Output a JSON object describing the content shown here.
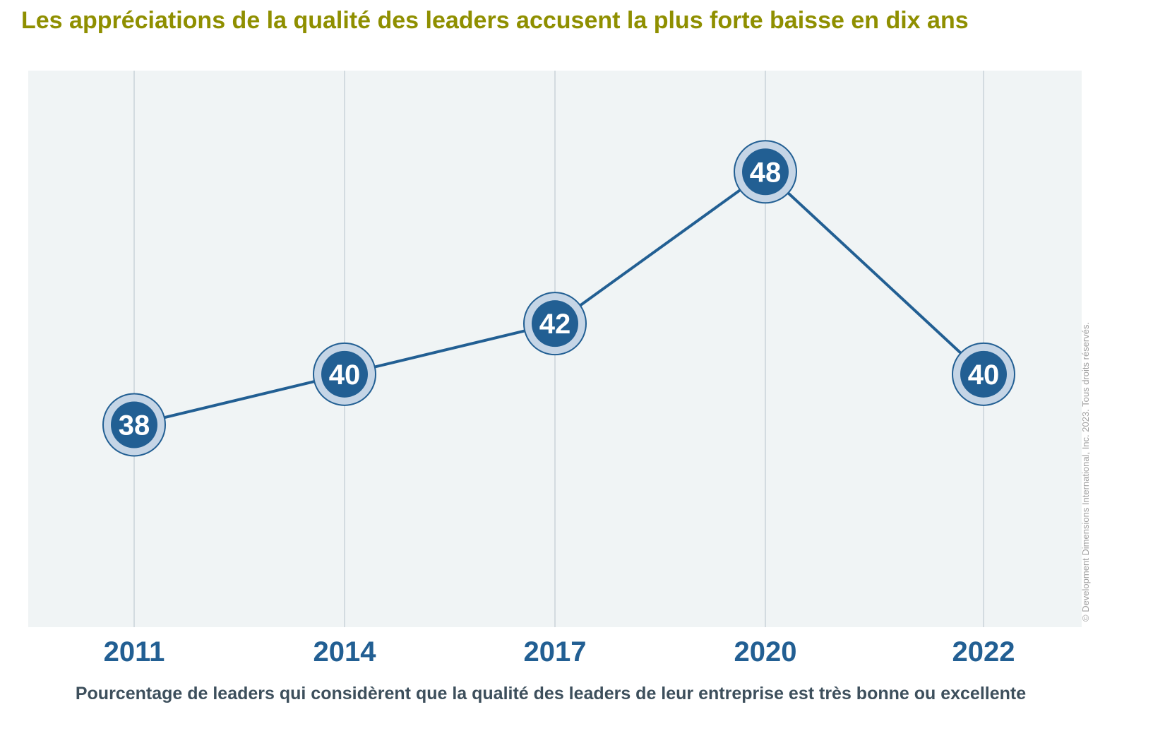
{
  "title": "Les appréciations de la qualité des leaders accusent la plus forte baisse en dix ans",
  "subtitle": "Pourcentage de leaders qui considèrent que la qualité des leaders de leur entreprise est très bonne ou excellente",
  "copyright": "© Development Dimensions International, Inc. 2023. Tous droits réservés.",
  "colors": {
    "title": "#8f8f00",
    "line": "#225f93",
    "marker_inner": "#225f93",
    "marker_ring": "#c5d5e6",
    "plot_bg": "#f0f4f5",
    "grid": "#d3dbe0",
    "tick_label": "#225f93",
    "subtitle": "#3d4f5c"
  },
  "chart_data": {
    "type": "line",
    "categories": [
      "2011",
      "2014",
      "2017",
      "2020",
      "2022"
    ],
    "series": [
      {
        "values": [
          38,
          40,
          42,
          48,
          40
        ]
      }
    ],
    "data_labels": [
      "38",
      "40",
      "42",
      "48",
      "40"
    ],
    "xlabel": "",
    "ylabel": "",
    "ylim": [
      30,
      52
    ],
    "grid": "vertical",
    "legend": "none"
  }
}
